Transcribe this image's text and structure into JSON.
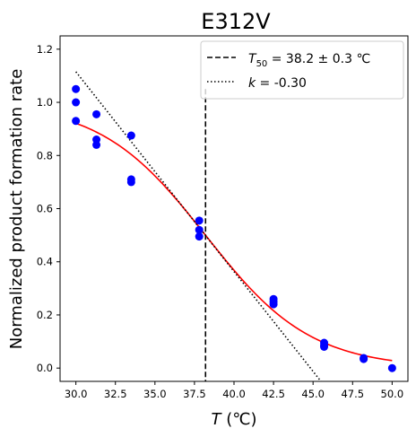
{
  "chart_data": {
    "type": "scatter",
    "title": "E312V",
    "xlabel_italic": "T",
    "xlabel_rest": " (℃)",
    "ylabel": "Normalized product formation rate",
    "xlim": [
      29.0,
      51.0
    ],
    "ylim": [
      -0.05,
      1.25
    ],
    "xticks": [
      30.0,
      32.5,
      35.0,
      37.5,
      40.0,
      42.5,
      45.0,
      47.5,
      50.0
    ],
    "yticks": [
      0.0,
      0.2,
      0.4,
      0.6,
      0.8,
      1.0,
      1.2
    ],
    "xtick_labels": [
      "30.0",
      "32.5",
      "35.0",
      "37.5",
      "40.0",
      "42.5",
      "45.0",
      "47.5",
      "50.0"
    ],
    "ytick_labels": [
      "0.0",
      "0.2",
      "0.4",
      "0.6",
      "0.8",
      "1.0",
      "1.2"
    ],
    "grid": false,
    "legend_position": "top-right",
    "points": [
      {
        "x": 30.0,
        "y": 1.05
      },
      {
        "x": 30.0,
        "y": 1.0
      },
      {
        "x": 30.0,
        "y": 0.93
      },
      {
        "x": 31.3,
        "y": 0.955
      },
      {
        "x": 31.3,
        "y": 0.86
      },
      {
        "x": 31.3,
        "y": 0.84
      },
      {
        "x": 33.5,
        "y": 0.875
      },
      {
        "x": 33.5,
        "y": 0.71
      },
      {
        "x": 33.5,
        "y": 0.7
      },
      {
        "x": 37.8,
        "y": 0.555
      },
      {
        "x": 37.8,
        "y": 0.52
      },
      {
        "x": 37.8,
        "y": 0.495
      },
      {
        "x": 42.5,
        "y": 0.26
      },
      {
        "x": 42.5,
        "y": 0.25
      },
      {
        "x": 42.5,
        "y": 0.24
      },
      {
        "x": 45.7,
        "y": 0.095
      },
      {
        "x": 45.7,
        "y": 0.085
      },
      {
        "x": 45.7,
        "y": 0.08
      },
      {
        "x": 48.2,
        "y": 0.038
      },
      {
        "x": 48.2,
        "y": 0.034
      },
      {
        "x": 50.0,
        "y": 0.0
      }
    ],
    "point_color": "#0000ff",
    "fit": {
      "name": "sigmoid fit",
      "T50": 38.2,
      "k": -0.3,
      "color": "#ff0000",
      "x_range": [
        30.0,
        50.0
      ]
    },
    "vline": {
      "x": 38.2,
      "color": "#000000",
      "legend": {
        "symbol": "T",
        "subscript": "50",
        "value_text": " = 38.2 ± 0.3 ℃"
      }
    },
    "tangent": {
      "x_range": [
        30.0,
        45.5
      ],
      "y_range": [
        1.115,
        -0.05
      ],
      "color": "#000000",
      "legend": {
        "symbol": "k",
        "value_text": " = -0.30"
      }
    }
  }
}
